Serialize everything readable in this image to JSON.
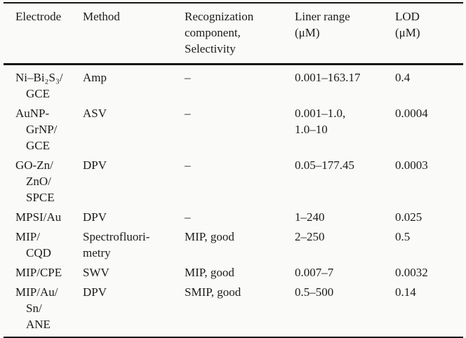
{
  "colors": {
    "background": "#fafaf8",
    "ink": "#1b1b1b",
    "rule": "#161616"
  },
  "table": {
    "headers": [
      [
        "Electrode"
      ],
      [
        "Method"
      ],
      [
        "Recognization",
        "component,",
        "Selectivity"
      ],
      [
        "Liner range",
        "(μM)"
      ],
      [
        "LOD",
        "(μM)"
      ]
    ],
    "rows": [
      {
        "electrode": [
          "Ni–Bi₂S₃/",
          "GCE"
        ],
        "method": [
          "Amp"
        ],
        "recognition": [
          "–"
        ],
        "range": [
          "0.001–163.17"
        ],
        "lod": [
          "0.4"
        ]
      },
      {
        "electrode": [
          "AuNP-",
          "GrNP/",
          "GCE"
        ],
        "method": [
          "ASV"
        ],
        "recognition": [
          "–"
        ],
        "range": [
          "0.001–1.0,",
          "1.0–10"
        ],
        "lod": [
          "0.0004"
        ]
      },
      {
        "electrode": [
          "GO-Zn/",
          "ZnO/",
          "SPCE"
        ],
        "method": [
          "DPV"
        ],
        "recognition": [
          "–"
        ],
        "range": [
          "0.05–177.45"
        ],
        "lod": [
          "0.0003"
        ]
      },
      {
        "electrode": [
          "MPSI/Au"
        ],
        "method": [
          "DPV"
        ],
        "recognition": [
          "–"
        ],
        "range": [
          "1–240"
        ],
        "lod": [
          "0.025"
        ]
      },
      {
        "electrode": [
          "MIP/",
          "CQD"
        ],
        "method": [
          "Spectrofluori-",
          "metry"
        ],
        "recognition": [
          "MIP, good"
        ],
        "range": [
          "2–250"
        ],
        "lod": [
          "0.5"
        ]
      },
      {
        "electrode": [
          "MIP/CPE"
        ],
        "method": [
          "SWV"
        ],
        "recognition": [
          "MIP, good"
        ],
        "range": [
          "0.007–7"
        ],
        "lod": [
          "0.0032"
        ]
      },
      {
        "electrode": [
          "MIP/Au/",
          "Sn/",
          "ANE"
        ],
        "method": [
          "DPV"
        ],
        "recognition": [
          "SMIP, good"
        ],
        "range": [
          "0.5–500"
        ],
        "lod": [
          "0.14"
        ]
      }
    ]
  }
}
